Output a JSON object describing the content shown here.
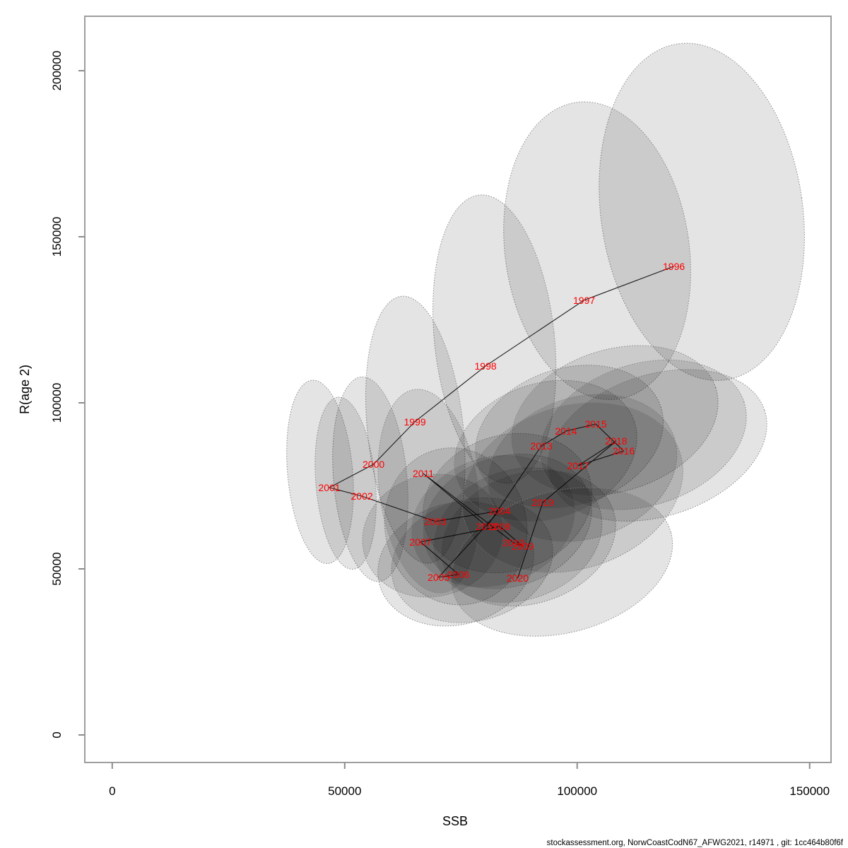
{
  "chart_data": {
    "type": "scatter",
    "title": "",
    "xlabel": "SSB",
    "ylabel": "R(age 2)",
    "xlim": [
      -5900,
      154600
    ],
    "ylim": [
      -8300,
      216400
    ],
    "grid": false,
    "legend": "none",
    "x_ticks": [
      {
        "v": 0,
        "label": "0"
      },
      {
        "v": 50000,
        "label": "50000"
      },
      {
        "v": 100000,
        "label": "100000"
      },
      {
        "v": 150000,
        "label": "150000"
      }
    ],
    "y_ticks": [
      {
        "v": 0,
        "label": "0"
      },
      {
        "v": 50000,
        "label": "50000"
      },
      {
        "v": 100000,
        "label": "100000"
      },
      {
        "v": 150000,
        "label": "150000"
      },
      {
        "v": 200000,
        "label": "200000"
      }
    ],
    "label_color": "#ff0000",
    "line_color": "#000000",
    "ellipse_fill": "rgba(0,0,0,0.105)",
    "ellipse_stroke": "rgba(125,125,125,0.9)",
    "points": [
      {
        "year": "1996",
        "ssb": 120800,
        "r": 141100
      },
      {
        "year": "1997",
        "ssb": 101500,
        "r": 130900
      },
      {
        "year": "1998",
        "ssb": 80300,
        "r": 111100
      },
      {
        "year": "1999",
        "ssb": 65100,
        "r": 94300
      },
      {
        "year": "2000",
        "ssb": 56200,
        "r": 81500
      },
      {
        "year": "2001",
        "ssb": 46700,
        "r": 74500
      },
      {
        "year": "2002",
        "ssb": 53700,
        "r": 71900
      },
      {
        "year": "2003",
        "ssb": 69500,
        "r": 64300
      },
      {
        "year": "2004",
        "ssb": 83300,
        "r": 67500
      },
      {
        "year": "2005",
        "ssb": 70200,
        "r": 47500
      },
      {
        "year": "2006",
        "ssb": 74500,
        "r": 48300
      },
      {
        "year": "2007",
        "ssb": 66300,
        "r": 58100
      },
      {
        "year": "2008",
        "ssb": 83300,
        "r": 62800
      },
      {
        "year": "2009",
        "ssb": 88300,
        "r": 56800
      },
      {
        "year": "2010",
        "ssb": 86300,
        "r": 57900
      },
      {
        "year": "2011",
        "ssb": 66900,
        "r": 78700
      },
      {
        "year": "2012",
        "ssb": 80600,
        "r": 62800
      },
      {
        "year": "2013",
        "ssb": 92300,
        "r": 87000
      },
      {
        "year": "2014",
        "ssb": 97600,
        "r": 91500
      },
      {
        "year": "2015",
        "ssb": 104000,
        "r": 93600
      },
      {
        "year": "2016",
        "ssb": 110000,
        "r": 85500
      },
      {
        "year": "2017",
        "ssb": 100200,
        "r": 81100
      },
      {
        "year": "2018",
        "ssb": 108400,
        "r": 88500
      },
      {
        "year": "2019",
        "ssb": 92600,
        "r": 70000
      },
      {
        "year": "2020",
        "ssb": 87200,
        "r": 47200
      }
    ],
    "ellipses": [
      {
        "year": "1996",
        "cx": 126800,
        "cy": 157500,
        "rx": 21700,
        "ry": 51100,
        "rot": -8
      },
      {
        "year": "1997",
        "cx": 104300,
        "cy": 145800,
        "rx": 19800,
        "ry": 45100,
        "rot": -8
      },
      {
        "year": "1998",
        "cx": 82200,
        "cy": 119200,
        "rx": 12900,
        "ry": 43600,
        "rot": -6
      },
      {
        "year": "1999",
        "cx": 65200,
        "cy": 91900,
        "rx": 10300,
        "ry": 40400,
        "rot": -6
      },
      {
        "year": "2000",
        "cx": 55500,
        "cy": 77000,
        "rx": 7900,
        "ry": 30900,
        "rot": -5
      },
      {
        "year": "2001",
        "cx": 44700,
        "cy": 79200,
        "rx": 7000,
        "ry": 27700,
        "rot": -5
      },
      {
        "year": "2002",
        "cx": 50200,
        "cy": 75800,
        "rx": 6400,
        "ry": 26000,
        "rot": -5
      },
      {
        "year": "2003",
        "cx": 73900,
        "cy": 62800,
        "rx": 15200,
        "ry": 23800,
        "rot": -15
      },
      {
        "year": "2004",
        "cx": 85000,
        "cy": 69800,
        "rx": 18500,
        "ry": 20400,
        "rot": -18
      },
      {
        "year": "2005",
        "cx": 73900,
        "cy": 51500,
        "rx": 17000,
        "ry": 18300,
        "rot": -15
      },
      {
        "year": "2006",
        "cx": 77400,
        "cy": 52600,
        "rx": 17600,
        "ry": 18300,
        "rot": -15
      },
      {
        "year": "2007",
        "cx": 68900,
        "cy": 60000,
        "rx": 15200,
        "ry": 18300,
        "rot": -15
      },
      {
        "year": "2008",
        "cx": 85000,
        "cy": 64300,
        "rx": 18500,
        "ry": 19600,
        "rot": -18
      },
      {
        "year": "2009",
        "cx": 89500,
        "cy": 59200,
        "rx": 19200,
        "ry": 19600,
        "rot": -18
      },
      {
        "year": "2010",
        "cx": 87200,
        "cy": 60200,
        "rx": 18500,
        "ry": 19600,
        "rot": -18
      },
      {
        "year": "2011",
        "cx": 68100,
        "cy": 73400,
        "rx": 10600,
        "ry": 30900,
        "rot": -8
      },
      {
        "year": "2012",
        "cx": 81900,
        "cy": 64300,
        "rx": 17900,
        "ry": 19200,
        "rot": -18
      },
      {
        "year": "2013",
        "cx": 93200,
        "cy": 85500,
        "rx": 20100,
        "ry": 20400,
        "rot": -18
      },
      {
        "year": "2014",
        "cx": 98300,
        "cy": 89800,
        "rx": 20700,
        "ry": 20600,
        "rot": -18
      },
      {
        "year": "2015",
        "cx": 108100,
        "cy": 94700,
        "rx": 22800,
        "ry": 21300,
        "rot": -18
      },
      {
        "year": "2016",
        "cx": 117200,
        "cy": 87200,
        "rx": 24300,
        "ry": 21300,
        "rot": -18
      },
      {
        "year": "2017",
        "cx": 101100,
        "cy": 80400,
        "rx": 20800,
        "ry": 21300,
        "rot": -18
      },
      {
        "year": "2018",
        "cx": 114200,
        "cy": 90400,
        "rx": 22800,
        "ry": 21300,
        "rot": -18
      },
      {
        "year": "2019",
        "cx": 99000,
        "cy": 74500,
        "rx": 24300,
        "ry": 24500,
        "rot": -18
      },
      {
        "year": "2020",
        "cx": 96700,
        "cy": 52100,
        "rx": 24300,
        "ry": 21300,
        "rot": -15
      }
    ]
  },
  "footer": {
    "text": "stockassessment.org, NorwCoastCodN67_AFWG2021, r14971 , git: 1cc464b80f6f"
  }
}
